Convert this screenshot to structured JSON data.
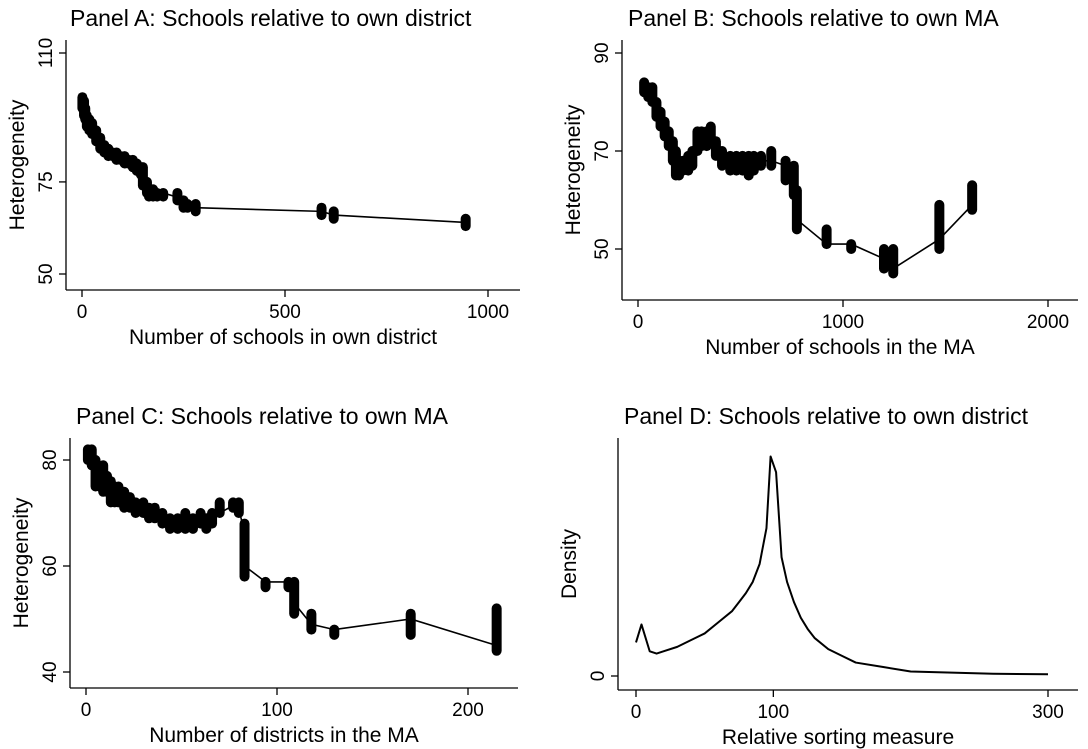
{
  "chart_data": [
    {
      "panel": "A",
      "type": "scatter",
      "title": "Panel A: Schools relative to own district",
      "xlabel": "Number of schools in own district",
      "ylabel": "Heterogeneity",
      "xlim": [
        0,
        1000
      ],
      "ylim": [
        50,
        110
      ],
      "xticks": [
        "0",
        "500",
        "1000"
      ],
      "yticks": [
        "50",
        "75",
        "110"
      ],
      "grid": false,
      "legend": "none",
      "line": [
        [
          1,
          97
        ],
        [
          5,
          95
        ],
        [
          10,
          92
        ],
        [
          20,
          90
        ],
        [
          30,
          88
        ],
        [
          45,
          85
        ],
        [
          60,
          83
        ],
        [
          80,
          82
        ],
        [
          100,
          81
        ],
        [
          120,
          80
        ],
        [
          140,
          78
        ],
        [
          160,
          74
        ],
        [
          180,
          72
        ],
        [
          200,
          72
        ],
        [
          230,
          71
        ],
        [
          260,
          69
        ],
        [
          280,
          68
        ],
        [
          590,
          67
        ],
        [
          620,
          66
        ],
        [
          945,
          64
        ]
      ],
      "clusters": [
        [
          1,
          95,
          98
        ],
        [
          5,
          93,
          97
        ],
        [
          8,
          92,
          95
        ],
        [
          12,
          90,
          93
        ],
        [
          18,
          89,
          92
        ],
        [
          25,
          88,
          91
        ],
        [
          35,
          86,
          89
        ],
        [
          45,
          84,
          87
        ],
        [
          55,
          83,
          85
        ],
        [
          65,
          82,
          84
        ],
        [
          75,
          82,
          83
        ],
        [
          85,
          81,
          83
        ],
        [
          95,
          81,
          82
        ],
        [
          105,
          80,
          82
        ],
        [
          115,
          80,
          81
        ],
        [
          125,
          79,
          81
        ],
        [
          135,
          78,
          80
        ],
        [
          145,
          77,
          79
        ],
        [
          150,
          74,
          79
        ],
        [
          160,
          72,
          75
        ],
        [
          165,
          71,
          73
        ],
        [
          175,
          71,
          73
        ],
        [
          185,
          71,
          72
        ],
        [
          200,
          71,
          72
        ],
        [
          235,
          70,
          72
        ],
        [
          250,
          68,
          70
        ],
        [
          260,
          68,
          69
        ],
        [
          280,
          67,
          69
        ],
        [
          590,
          66,
          68
        ],
        [
          620,
          65,
          67
        ],
        [
          945,
          63,
          65
        ]
      ]
    },
    {
      "panel": "B",
      "type": "scatter",
      "title": "Panel B: Schools relative to own MA",
      "xlabel": "Number of schools in the MA",
      "ylabel": "Heterogeneity",
      "xlim": [
        0,
        2000
      ],
      "ylim": [
        50,
        90
      ],
      "xticks": [
        "0",
        "1000",
        "2000"
      ],
      "yticks": [
        "50",
        "70",
        "90"
      ],
      "grid": false,
      "legend": "none",
      "line": [
        [
          30,
          83
        ],
        [
          60,
          82
        ],
        [
          90,
          79
        ],
        [
          120,
          75
        ],
        [
          150,
          72
        ],
        [
          180,
          68
        ],
        [
          200,
          66
        ],
        [
          230,
          67
        ],
        [
          260,
          68
        ],
        [
          290,
          72
        ],
        [
          320,
          73
        ],
        [
          350,
          73
        ],
        [
          380,
          70
        ],
        [
          420,
          68
        ],
        [
          470,
          67
        ],
        [
          520,
          68
        ],
        [
          560,
          68
        ],
        [
          600,
          68
        ],
        [
          650,
          68
        ],
        [
          720,
          67
        ],
        [
          760,
          66
        ],
        [
          775,
          56
        ],
        [
          920,
          51
        ],
        [
          1040,
          51
        ],
        [
          1200,
          48
        ],
        [
          1245,
          46
        ],
        [
          1470,
          52
        ],
        [
          1630,
          59
        ]
      ],
      "clusters": [
        [
          30,
          82,
          84
        ],
        [
          50,
          81,
          83
        ],
        [
          70,
          80,
          83
        ],
        [
          90,
          77,
          80
        ],
        [
          110,
          75,
          78
        ],
        [
          130,
          73,
          76
        ],
        [
          150,
          71,
          74
        ],
        [
          170,
          68,
          72
        ],
        [
          185,
          65,
          70
        ],
        [
          200,
          65,
          68
        ],
        [
          220,
          66,
          68
        ],
        [
          245,
          66,
          69
        ],
        [
          265,
          67,
          70
        ],
        [
          290,
          70,
          74
        ],
        [
          310,
          71,
          74
        ],
        [
          335,
          71,
          74
        ],
        [
          355,
          72,
          75
        ],
        [
          380,
          69,
          72
        ],
        [
          410,
          67,
          70
        ],
        [
          450,
          66,
          69
        ],
        [
          480,
          66,
          69
        ],
        [
          510,
          66,
          69
        ],
        [
          540,
          65,
          69
        ],
        [
          565,
          66,
          69
        ],
        [
          600,
          67,
          69
        ],
        [
          650,
          67,
          70
        ],
        [
          720,
          64,
          68
        ],
        [
          760,
          61,
          67
        ],
        [
          775,
          54,
          62
        ],
        [
          920,
          51,
          54
        ],
        [
          1040,
          50,
          51
        ],
        [
          1200,
          46,
          50
        ],
        [
          1245,
          45,
          50
        ],
        [
          1470,
          50,
          59
        ],
        [
          1630,
          58,
          63
        ]
      ]
    },
    {
      "panel": "C",
      "type": "scatter",
      "title": "Panel C: Schools relative to own MA",
      "xlabel": "Number of districts in the MA",
      "ylabel": "Heterogeneity",
      "xlim": [
        0,
        200
      ],
      "ylim": [
        40,
        80
      ],
      "xticks": [
        "0",
        "100",
        "200"
      ],
      "yticks": [
        "40",
        "60",
        "80"
      ],
      "grid": false,
      "legend": "none",
      "line": [
        [
          1,
          82
        ],
        [
          3,
          81
        ],
        [
          5,
          77
        ],
        [
          8,
          76
        ],
        [
          11,
          75
        ],
        [
          15,
          74
        ],
        [
          20,
          73
        ],
        [
          25,
          72
        ],
        [
          30,
          71
        ],
        [
          35,
          70
        ],
        [
          40,
          69
        ],
        [
          45,
          68
        ],
        [
          50,
          68
        ],
        [
          55,
          69
        ],
        [
          60,
          68
        ],
        [
          65,
          68
        ],
        [
          70,
          70
        ],
        [
          75,
          71
        ],
        [
          80,
          71
        ],
        [
          83,
          66
        ],
        [
          83,
          60
        ],
        [
          94,
          57
        ],
        [
          106,
          57
        ],
        [
          109,
          53
        ],
        [
          118,
          49
        ],
        [
          130,
          48
        ],
        [
          170,
          50
        ],
        [
          215,
          45
        ]
      ],
      "clusters": [
        [
          1,
          80,
          82
        ],
        [
          3,
          79,
          82
        ],
        [
          5,
          75,
          80
        ],
        [
          7,
          75,
          78
        ],
        [
          9,
          74,
          79
        ],
        [
          11,
          74,
          77
        ],
        [
          13,
          72,
          76
        ],
        [
          15,
          72,
          75
        ],
        [
          17,
          72,
          75
        ],
        [
          20,
          71,
          74
        ],
        [
          23,
          71,
          73
        ],
        [
          26,
          70,
          72
        ],
        [
          30,
          70,
          72
        ],
        [
          33,
          69,
          71
        ],
        [
          36,
          69,
          71
        ],
        [
          40,
          68,
          70
        ],
        [
          44,
          67,
          69
        ],
        [
          48,
          67,
          69
        ],
        [
          52,
          67,
          70
        ],
        [
          56,
          67,
          69
        ],
        [
          60,
          68,
          70
        ],
        [
          63,
          67,
          69
        ],
        [
          66,
          68,
          70
        ],
        [
          70,
          70,
          72
        ],
        [
          77,
          71,
          72
        ],
        [
          80,
          70,
          72
        ],
        [
          83,
          58,
          68
        ],
        [
          94,
          56,
          57
        ],
        [
          106,
          56,
          57
        ],
        [
          109,
          51,
          57
        ],
        [
          118,
          48,
          51
        ],
        [
          130,
          47,
          48
        ],
        [
          170,
          47,
          51
        ],
        [
          215,
          44,
          52
        ]
      ]
    },
    {
      "panel": "D",
      "type": "line",
      "title": "Panel D: Schools relative to own district",
      "xlabel": "Relative sorting measure",
      "ylabel": "Density",
      "xlim": [
        0,
        300
      ],
      "ylim": [
        0,
        1
      ],
      "xticks": [
        "0",
        "100",
        "300"
      ],
      "yticks": [
        "0"
      ],
      "grid": false,
      "legend": "none",
      "x": [
        0,
        4,
        10,
        15,
        20,
        30,
        40,
        50,
        60,
        70,
        75,
        80,
        85,
        90,
        95,
        98,
        102,
        106,
        110,
        115,
        120,
        125,
        130,
        140,
        150,
        160,
        180,
        200,
        230,
        260,
        300
      ],
      "y": [
        0.15,
        0.23,
        0.11,
        0.1,
        0.11,
        0.13,
        0.16,
        0.19,
        0.24,
        0.29,
        0.33,
        0.37,
        0.42,
        0.5,
        0.66,
        0.98,
        0.91,
        0.53,
        0.42,
        0.33,
        0.26,
        0.21,
        0.17,
        0.12,
        0.09,
        0.06,
        0.04,
        0.02,
        0.015,
        0.01,
        0.008
      ]
    }
  ]
}
